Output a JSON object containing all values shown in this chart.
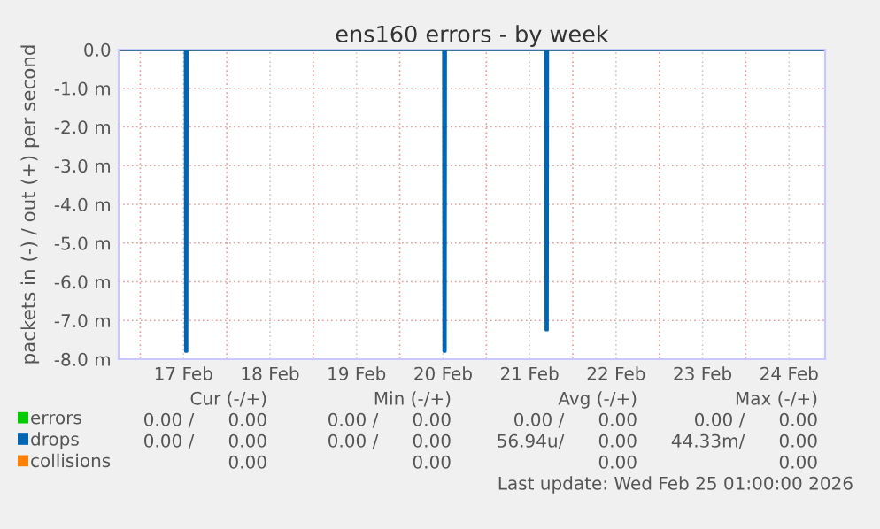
{
  "chart_data": {
    "type": "line",
    "title": "ens160 errors - by week",
    "ylabel": "packets in (-) / out (+) per second",
    "series": [
      {
        "name": "errors",
        "color": "#00cc00"
      },
      {
        "name": "drops",
        "color": "#0066b3",
        "x": [
          "2026-02-16T18:00",
          "2026-02-17T12:25",
          "2026-02-17T12:30",
          "2026-02-17T13:00",
          "2026-02-17T13:05",
          "2026-02-20T12:05",
          "2026-02-20T12:10",
          "2026-02-20T12:40",
          "2026-02-20T12:45",
          "2026-02-21T16:25",
          "2026-02-21T16:30",
          "2026-02-21T17:00",
          "2026-02-21T17:05",
          "2026-02-24T22:00"
        ],
        "values": [
          0,
          0,
          -7.8,
          -7.8,
          0,
          0,
          -7.8,
          -7.8,
          0,
          0,
          -7.25,
          -7.25,
          0,
          0
        ]
      },
      {
        "name": "collisions",
        "color": "#ff8000"
      }
    ],
    "xlim": [
      "2026-02-16T18:00",
      "2026-02-24T22:00"
    ],
    "xticks": [
      {
        "value": "2026-02-17T00:00",
        "label": null
      },
      {
        "value": "2026-02-17T12:00",
        "label": "17 Feb"
      },
      {
        "value": "2026-02-18T00:00",
        "label": null
      },
      {
        "value": "2026-02-18T12:00",
        "label": "18 Feb"
      },
      {
        "value": "2026-02-19T00:00",
        "label": null
      },
      {
        "value": "2026-02-19T12:00",
        "label": "19 Feb"
      },
      {
        "value": "2026-02-20T00:00",
        "label": null
      },
      {
        "value": "2026-02-20T12:00",
        "label": "20 Feb"
      },
      {
        "value": "2026-02-21T00:00",
        "label": null
      },
      {
        "value": "2026-02-21T12:00",
        "label": "21 Feb"
      },
      {
        "value": "2026-02-22T00:00",
        "label": null
      },
      {
        "value": "2026-02-22T12:00",
        "label": "22 Feb"
      },
      {
        "value": "2026-02-23T00:00",
        "label": null
      },
      {
        "value": "2026-02-23T12:00",
        "label": "23 Feb"
      },
      {
        "value": "2026-02-24T00:00",
        "label": null
      },
      {
        "value": "2026-02-24T12:00",
        "label": "24 Feb"
      }
    ],
    "ylim": [
      -8,
      0
    ],
    "yticks": [
      {
        "value": -8,
        "label": "-8.0 m"
      },
      {
        "value": -7,
        "label": "-7.0 m"
      },
      {
        "value": -6,
        "label": "-6.0 m"
      },
      {
        "value": -5,
        "label": "-5.0 m"
      },
      {
        "value": -4,
        "label": "-4.0 m"
      },
      {
        "value": -3,
        "label": "-3.0 m"
      },
      {
        "value": -2,
        "label": "-2.0 m"
      },
      {
        "value": -1,
        "label": "-1.0 m"
      },
      {
        "value": 0,
        "label": "0.0"
      }
    ],
    "grid": true,
    "legend": "bottom left",
    "annotations": [
      "Cur (-/+)",
      "Min (-/+)",
      "Avg (-/+)",
      "Max (-/+)",
      "0.00 /      0.00",
      "0.00 /      0.00",
      "0.00 /      0.00",
      "0.00 /      0.00",
      "0.00 /      0.00",
      "0.00 /      0.00",
      "56.94u/      0.00",
      "44.33m/      0.00",
      "0.00",
      "0.00",
      "0.00",
      "0.00",
      "Last update: Wed Feb 25 01:00:00 2026"
    ]
  }
}
